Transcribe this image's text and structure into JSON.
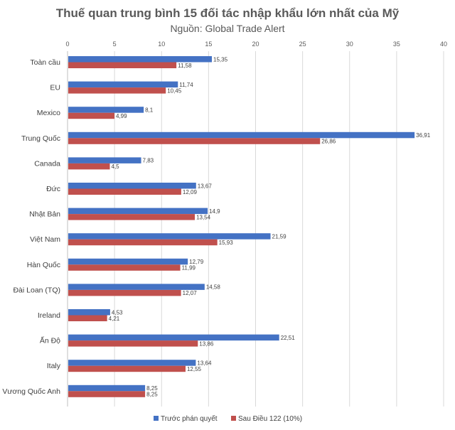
{
  "chart_data": {
    "type": "bar",
    "orientation": "horizontal",
    "title": "Thuế quan trung bình 15 đối tác nhập khẩu lớn nhất của Mỹ",
    "subtitle": "Nguồn: Global Trade Alert",
    "xlim": [
      0,
      40
    ],
    "xticks": [
      0,
      5,
      10,
      15,
      20,
      25,
      30,
      35,
      40
    ],
    "grid": true,
    "legend_position": "bottom",
    "categories": [
      "Toàn cầu",
      "EU",
      "Mexico",
      "Trung Quốc",
      "Canada",
      "Đức",
      "Nhật Bản",
      "Việt Nam",
      "Hàn Quốc",
      "Đài Loan (TQ)",
      "Ireland",
      "Ấn Độ",
      "Italy",
      "Vương Quốc Anh"
    ],
    "series": [
      {
        "name": "Trước phán quyết",
        "color": "#4472c4",
        "values": [
          15.35,
          11.74,
          8.1,
          36.91,
          7.83,
          13.67,
          14.9,
          21.59,
          12.79,
          14.58,
          4.53,
          22.51,
          13.64,
          8.25
        ],
        "labels": [
          "15,35",
          "11,74",
          "8,1",
          "36,91",
          "7,83",
          "13,67",
          "14,9",
          "21,59",
          "12,79",
          "14,58",
          "4,53",
          "22,51",
          "13,64",
          "8,25"
        ]
      },
      {
        "name": "Sau Điều 122 (10%)",
        "color": "#c0504d",
        "values": [
          11.58,
          10.45,
          4.99,
          26.86,
          4.5,
          12.09,
          13.54,
          15.93,
          11.99,
          12.07,
          4.21,
          13.86,
          12.55,
          8.25
        ],
        "labels": [
          "11,58",
          "10,45",
          "4,99",
          "26,86",
          "4,5",
          "12,09",
          "13,54",
          "15,93",
          "11,99",
          "12,07",
          "4,21",
          "13,86",
          "12,55",
          "8,25"
        ]
      }
    ]
  }
}
